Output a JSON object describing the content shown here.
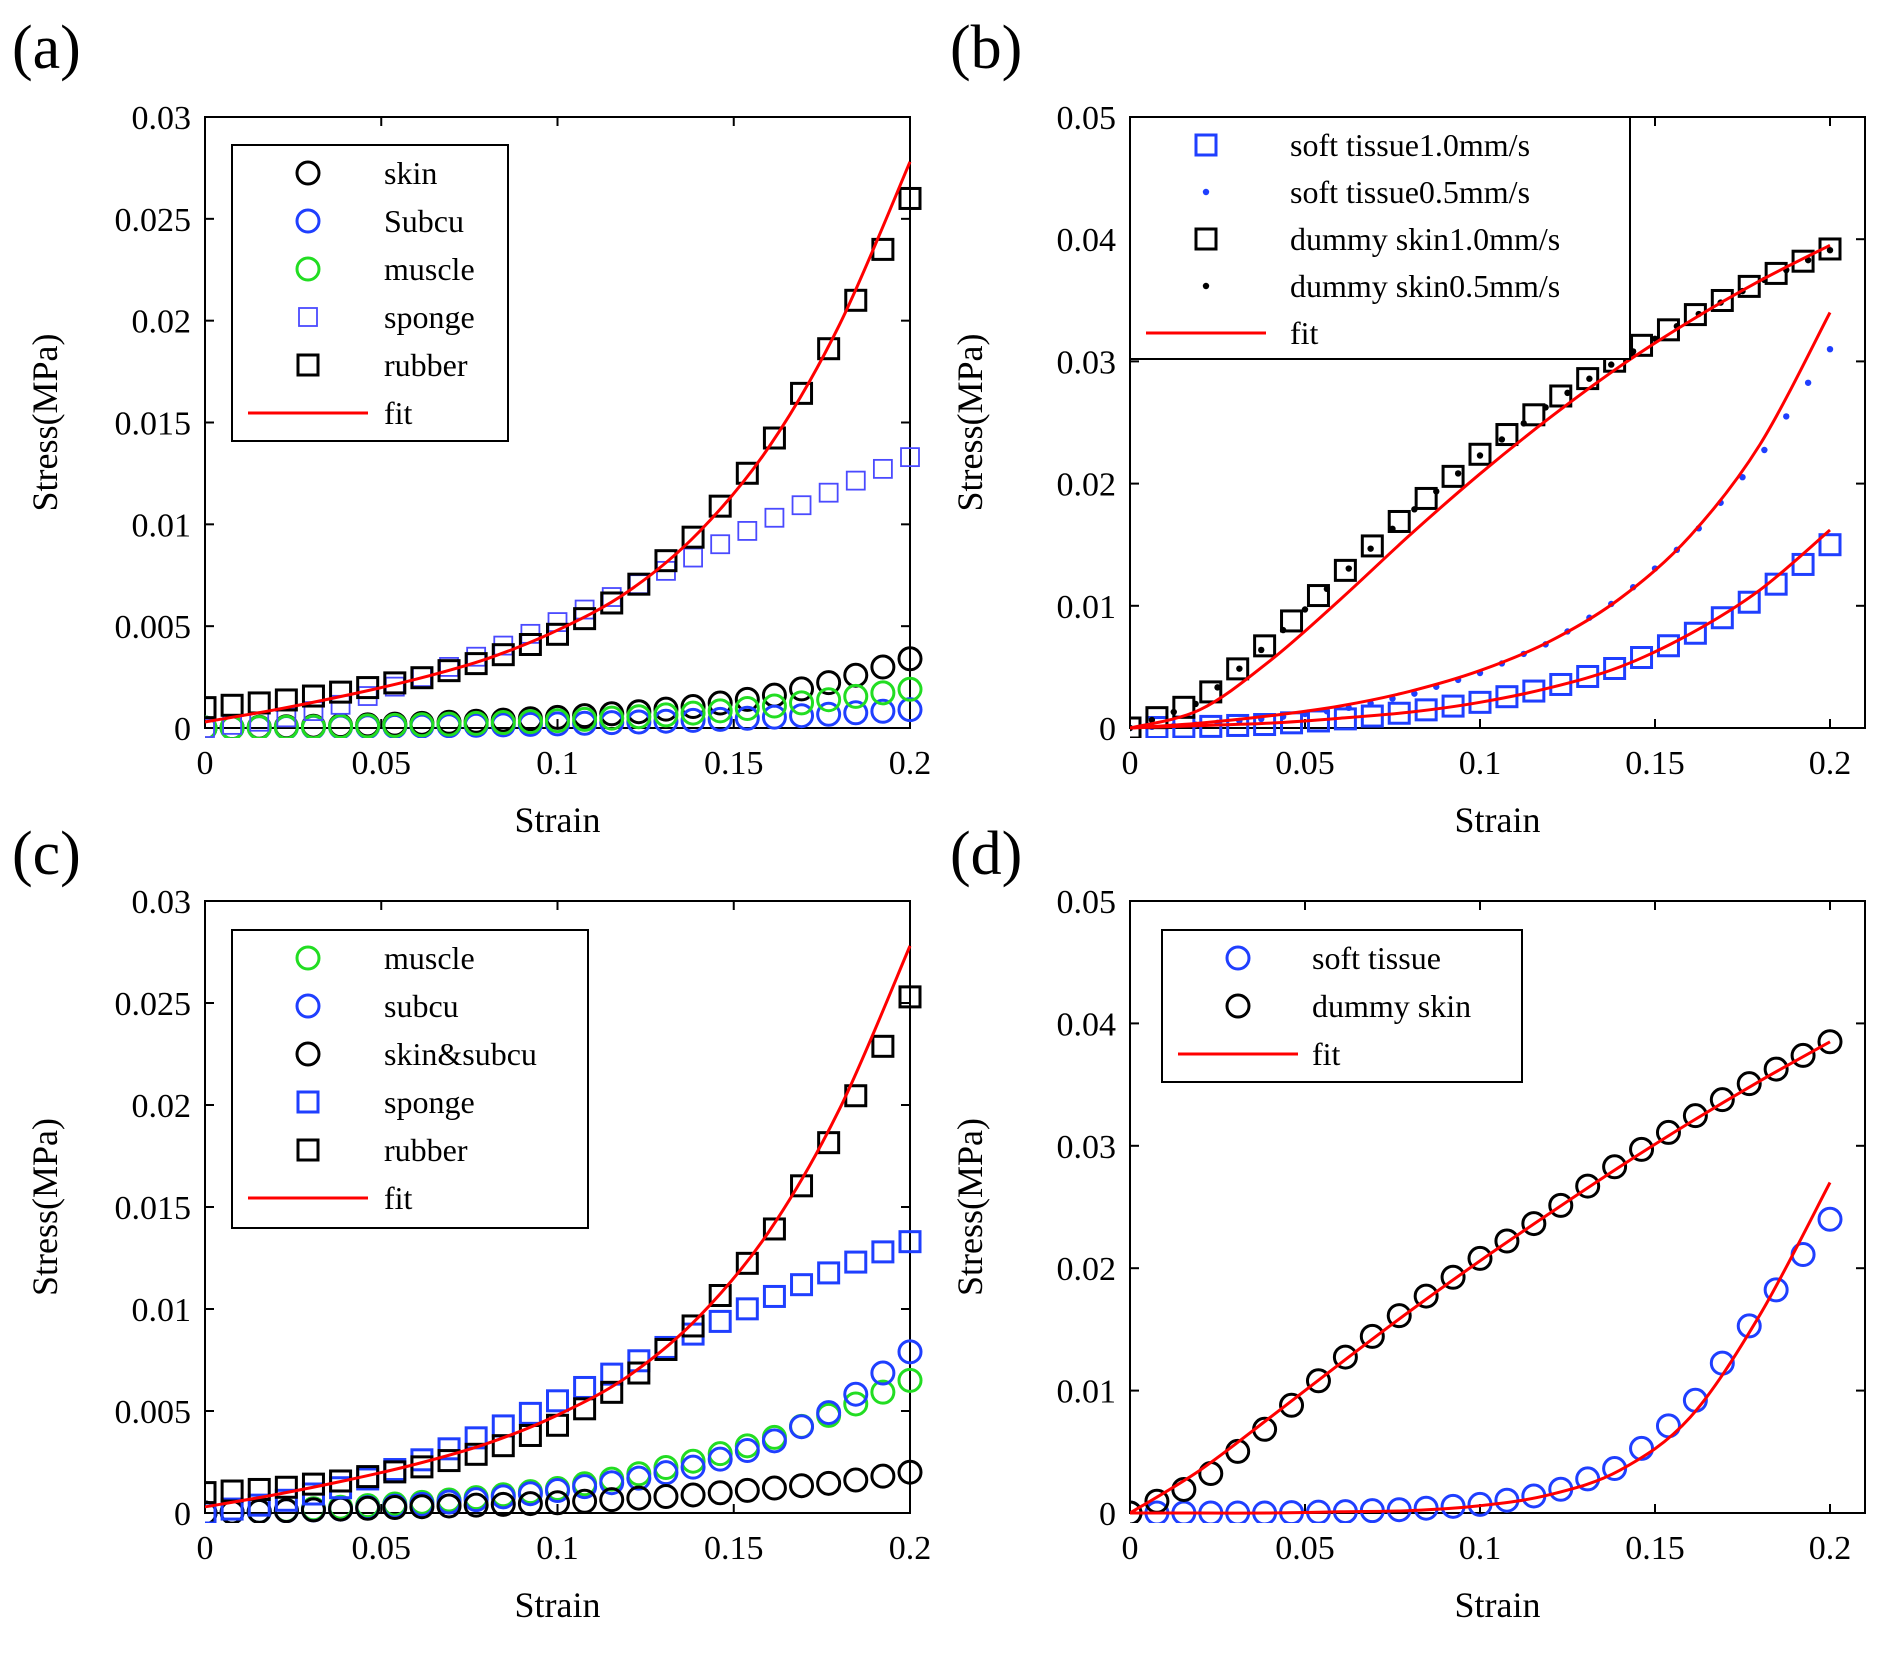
{
  "chart_data": [
    {
      "type": "scatter",
      "panel_label": "(a)",
      "xlabel": "Strain",
      "ylabel": "Stress(MPa)",
      "xlim": [
        0,
        0.2
      ],
      "ylim": [
        0,
        0.03
      ],
      "xticks": [
        0,
        0.05,
        0.1,
        0.15,
        0.2
      ],
      "xtick_labels": [
        "0",
        "0.05",
        "0.1",
        "0.15",
        "0.2"
      ],
      "yticks": [
        0,
        0.005,
        0.01,
        0.015,
        0.02,
        0.025,
        0.03
      ],
      "ytick_labels": [
        "0",
        "0.005",
        "0.01",
        "0.015",
        "0.02",
        "0.025",
        "0.03"
      ],
      "legend_position": "top-left",
      "series": [
        {
          "name": "skin",
          "marker": "circle",
          "color": "#000000",
          "x": [
            0,
            0.02,
            0.04,
            0.06,
            0.08,
            0.1,
            0.12,
            0.14,
            0.16,
            0.18,
            0.2
          ],
          "y": [
            0,
            5e-05,
            0.00012,
            0.00022,
            0.00035,
            0.00052,
            0.00075,
            0.00108,
            0.00155,
            0.00235,
            0.0034
          ]
        },
        {
          "name": "Subcu",
          "marker": "circle",
          "color": "#1f3fff",
          "x": [
            0,
            0.02,
            0.04,
            0.06,
            0.08,
            0.1,
            0.12,
            0.14,
            0.16,
            0.18,
            0.2
          ],
          "y": [
            0,
            2e-05,
            5e-05,
            9e-05,
            0.00014,
            0.0002,
            0.00028,
            0.00038,
            0.00052,
            0.0007,
            0.0009
          ]
        },
        {
          "name": "muscle",
          "marker": "circle",
          "color": "#22dd22",
          "x": [
            0,
            0.02,
            0.04,
            0.06,
            0.08,
            0.1,
            0.12,
            0.14,
            0.16,
            0.18,
            0.2
          ],
          "y": [
            0,
            3e-05,
            8e-05,
            0.00015,
            0.00024,
            0.00036,
            0.00052,
            0.00075,
            0.00105,
            0.00145,
            0.0019
          ]
        },
        {
          "name": "sponge",
          "marker": "square-open",
          "color": "#4a4aff",
          "x": [
            0,
            0.02,
            0.04,
            0.06,
            0.08,
            0.1,
            0.12,
            0.14,
            0.16,
            0.18,
            0.2
          ],
          "y": [
            0,
            0.0004,
            0.0012,
            0.0024,
            0.0037,
            0.0052,
            0.0068,
            0.0085,
            0.0102,
            0.0118,
            0.0133
          ]
        },
        {
          "name": "rubber",
          "marker": "square",
          "color": "#000000",
          "x": [
            0,
            0.02,
            0.04,
            0.06,
            0.08,
            0.1,
            0.12,
            0.14,
            0.16,
            0.18,
            0.2
          ],
          "y": [
            0.001,
            0.0013,
            0.0018,
            0.0024,
            0.0033,
            0.0046,
            0.0066,
            0.0096,
            0.0138,
            0.0195,
            0.026
          ]
        },
        {
          "name": "fit",
          "marker": "line",
          "color": "#ff0000",
          "x": [
            0,
            0.02,
            0.04,
            0.06,
            0.08,
            0.1,
            0.12,
            0.14,
            0.16,
            0.18,
            0.2
          ],
          "y": [
            0.0003,
            0.0009,
            0.0016,
            0.0024,
            0.0034,
            0.0048,
            0.0067,
            0.0096,
            0.0138,
            0.0198,
            0.0278
          ]
        }
      ]
    },
    {
      "type": "scatter",
      "panel_label": "(b)",
      "xlabel": "Strain",
      "ylabel": "Stress(MPa)",
      "xlim": [
        0,
        0.21
      ],
      "ylim": [
        0,
        0.05
      ],
      "xticks": [
        0,
        0.05,
        0.1,
        0.15,
        0.2
      ],
      "xtick_labels": [
        "0",
        "0.05",
        "0.1",
        "0.15",
        "0.2"
      ],
      "yticks": [
        0,
        0.01,
        0.02,
        0.03,
        0.04,
        0.05
      ],
      "ytick_labels": [
        "0",
        "0.01",
        "0.02",
        "0.03",
        "0.04",
        "0.05"
      ],
      "legend_position": "top-left",
      "series": [
        {
          "name": "soft tissue1.0mm/s",
          "marker": "square",
          "color": "#1f3fff",
          "x": [
            0,
            0.02,
            0.04,
            0.06,
            0.08,
            0.1,
            0.12,
            0.14,
            0.16,
            0.18,
            0.2
          ],
          "y": [
            0,
            0.0001,
            0.0003,
            0.0007,
            0.0013,
            0.0021,
            0.0033,
            0.005,
            0.0075,
            0.0108,
            0.015
          ]
        },
        {
          "name": "soft tissue0.5mm/s",
          "marker": "dot",
          "color": "#1f3fff",
          "x": [
            0,
            0.02,
            0.04,
            0.06,
            0.08,
            0.1,
            0.12,
            0.14,
            0.16,
            0.18,
            0.2
          ],
          "y": [
            0,
            0.0003,
            0.0008,
            0.0015,
            0.0027,
            0.0045,
            0.007,
            0.0106,
            0.0155,
            0.0222,
            0.031
          ]
        },
        {
          "name": "dummy skin1.0mm/s",
          "marker": "square",
          "color": "#000000",
          "x": [
            0,
            0.02,
            0.04,
            0.06,
            0.08,
            0.1,
            0.12,
            0.14,
            0.16,
            0.18,
            0.2
          ],
          "y": [
            0,
            0.0022,
            0.0071,
            0.0125,
            0.0177,
            0.0224,
            0.0266,
            0.0303,
            0.0336,
            0.0366,
            0.0392
          ]
        },
        {
          "name": "dummy skin0.5mm/s",
          "marker": "dot",
          "color": "#000000",
          "x": [
            0,
            0.02,
            0.04,
            0.06,
            0.08,
            0.1,
            0.12,
            0.14,
            0.16,
            0.18,
            0.2
          ],
          "y": [
            0,
            0.0021,
            0.007,
            0.0124,
            0.0176,
            0.0223,
            0.0265,
            0.0302,
            0.0335,
            0.0365,
            0.0391
          ]
        },
        {
          "name": "fit",
          "marker": "line",
          "color": "#ff0000",
          "curves": [
            {
              "x": [
                0,
                0.02,
                0.04,
                0.06,
                0.08,
                0.1,
                0.12,
                0.14,
                0.16,
                0.18,
                0.2
              ],
              "y": [
                0,
                0.0015,
                0.0055,
                0.0105,
                0.0158,
                0.0208,
                0.0254,
                0.0296,
                0.0333,
                0.0366,
                0.0395
              ]
            },
            {
              "x": [
                0,
                0.02,
                0.04,
                0.06,
                0.08,
                0.1,
                0.12,
                0.14,
                0.16,
                0.18,
                0.2
              ],
              "y": [
                0,
                0.0004,
                0.001,
                0.0018,
                0.003,
                0.0047,
                0.0071,
                0.0106,
                0.0157,
                0.0232,
                0.034
              ]
            },
            {
              "x": [
                0,
                0.02,
                0.04,
                0.06,
                0.08,
                0.1,
                0.12,
                0.14,
                0.16,
                0.18,
                0.2
              ],
              "y": [
                0,
                0.0002,
                0.0004,
                0.0008,
                0.0013,
                0.0021,
                0.0033,
                0.005,
                0.0077,
                0.0113,
                0.0162
              ]
            }
          ]
        }
      ]
    },
    {
      "type": "scatter",
      "panel_label": "(c)",
      "xlabel": "Strain",
      "ylabel": "Stress(MPa)",
      "xlim": [
        0,
        0.2
      ],
      "ylim": [
        0,
        0.03
      ],
      "xticks": [
        0,
        0.05,
        0.1,
        0.15,
        0.2
      ],
      "xtick_labels": [
        "0",
        "0.05",
        "0.1",
        "0.15",
        "0.2"
      ],
      "yticks": [
        0,
        0.005,
        0.01,
        0.015,
        0.02,
        0.025,
        0.03
      ],
      "ytick_labels": [
        "0",
        "0.005",
        "0.01",
        "0.015",
        "0.02",
        "0.025",
        "0.03"
      ],
      "legend_position": "top-left",
      "series": [
        {
          "name": "muscle",
          "marker": "circle",
          "color": "#22dd22",
          "x": [
            0,
            0.02,
            0.04,
            0.06,
            0.08,
            0.1,
            0.12,
            0.14,
            0.16,
            0.18,
            0.2
          ],
          "y": [
            0,
            0.0001,
            0.0003,
            0.0005,
            0.0008,
            0.0012,
            0.0018,
            0.0026,
            0.0036,
            0.005,
            0.0065
          ]
        },
        {
          "name": "subcu",
          "marker": "circle",
          "color": "#1f3fff",
          "x": [
            0,
            0.02,
            0.04,
            0.06,
            0.08,
            0.1,
            0.12,
            0.14,
            0.16,
            0.18,
            0.2
          ],
          "y": [
            0,
            0.0001,
            0.0002,
            0.0004,
            0.0007,
            0.0011,
            0.0016,
            0.0023,
            0.0034,
            0.0052,
            0.0079
          ]
        },
        {
          "name": "skin&subcu",
          "marker": "circle",
          "color": "#000000",
          "x": [
            0,
            0.02,
            0.04,
            0.06,
            0.08,
            0.1,
            0.12,
            0.14,
            0.16,
            0.18,
            0.2
          ],
          "y": [
            0,
            0.0001,
            0.0002,
            0.0003,
            0.0004,
            0.0005,
            0.0007,
            0.0009,
            0.0012,
            0.0015,
            0.002
          ]
        },
        {
          "name": "sponge",
          "marker": "square",
          "color": "#1f3fff",
          "x": [
            0,
            0.02,
            0.04,
            0.06,
            0.08,
            0.1,
            0.12,
            0.14,
            0.16,
            0.18,
            0.2
          ],
          "y": [
            0,
            0.0005,
            0.0013,
            0.0025,
            0.0039,
            0.0055,
            0.0072,
            0.0089,
            0.0105,
            0.012,
            0.0133
          ]
        },
        {
          "name": "rubber",
          "marker": "square",
          "color": "#000000",
          "x": [
            0,
            0.02,
            0.04,
            0.06,
            0.08,
            0.1,
            0.12,
            0.14,
            0.16,
            0.18,
            0.2
          ],
          "y": [
            0.001,
            0.0012,
            0.0016,
            0.0022,
            0.003,
            0.0043,
            0.0064,
            0.0094,
            0.0135,
            0.019,
            0.0253
          ]
        },
        {
          "name": "fit",
          "marker": "line",
          "color": "#ff0000",
          "x": [
            0,
            0.02,
            0.04,
            0.06,
            0.08,
            0.1,
            0.12,
            0.14,
            0.16,
            0.18,
            0.2
          ],
          "y": [
            0.0003,
            0.0009,
            0.0016,
            0.0024,
            0.0034,
            0.0048,
            0.0067,
            0.0096,
            0.0138,
            0.0198,
            0.0278
          ]
        }
      ]
    },
    {
      "type": "scatter",
      "panel_label": "(d)",
      "xlabel": "Strain",
      "ylabel": "Stress(MPa)",
      "xlim": [
        0,
        0.21
      ],
      "ylim": [
        0,
        0.05
      ],
      "xticks": [
        0,
        0.05,
        0.1,
        0.15,
        0.2
      ],
      "xtick_labels": [
        "0",
        "0.05",
        "0.1",
        "0.15",
        "0.2"
      ],
      "yticks": [
        0,
        0.01,
        0.02,
        0.03,
        0.04,
        0.05
      ],
      "ytick_labels": [
        "0",
        "0.01",
        "0.02",
        "0.03",
        "0.04",
        "0.05"
      ],
      "legend_position": "top-left",
      "series": [
        {
          "name": "soft tissue",
          "marker": "circle",
          "color": "#1f3fff",
          "x": [
            0,
            0.02,
            0.04,
            0.06,
            0.08,
            0.1,
            0.12,
            0.14,
            0.16,
            0.18,
            0.2
          ],
          "y": [
            0,
            0,
            0,
            0.0001,
            0.0003,
            0.0007,
            0.0016,
            0.0038,
            0.0086,
            0.0165,
            0.024
          ]
        },
        {
          "name": "dummy skin",
          "marker": "circle",
          "color": "#000000",
          "x": [
            0,
            0.02,
            0.04,
            0.06,
            0.08,
            0.1,
            0.12,
            0.14,
            0.16,
            0.18,
            0.2
          ],
          "y": [
            0,
            0.0025,
            0.0072,
            0.0124,
            0.0168,
            0.0208,
            0.0245,
            0.0286,
            0.0322,
            0.0356,
            0.0385
          ]
        },
        {
          "name": "fit",
          "marker": "line",
          "color": "#ff0000",
          "curves": [
            {
              "x": [
                0,
                0.02,
                0.04,
                0.06,
                0.08,
                0.1,
                0.12,
                0.14,
                0.16,
                0.18,
                0.2
              ],
              "y": [
                0,
                0.0035,
                0.0078,
                0.0122,
                0.0165,
                0.0206,
                0.0245,
                0.0283,
                0.0319,
                0.0353,
                0.0385
              ]
            },
            {
              "x": [
                0,
                0.02,
                0.04,
                0.06,
                0.08,
                0.1,
                0.12,
                0.14,
                0.16,
                0.18,
                0.2
              ],
              "y": [
                0,
                0,
                0,
                0.0001,
                0.0002,
                0.0006,
                0.0015,
                0.0035,
                0.0078,
                0.0162,
                0.027
              ]
            }
          ]
        }
      ]
    }
  ]
}
